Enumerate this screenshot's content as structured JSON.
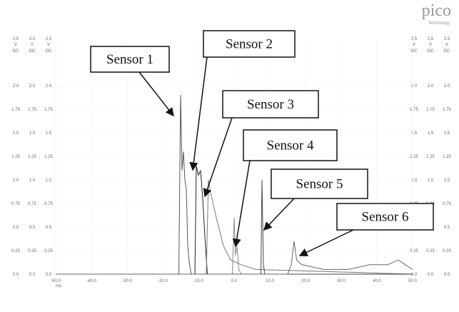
{
  "chart_data": {
    "type": "line",
    "brand": "pico",
    "brand_sub": "Technology",
    "yunit": [
      "V",
      "DC"
    ],
    "xunit": "ms",
    "xlim": [
      -50,
      50
    ],
    "ylim": [
      0,
      2.5
    ],
    "xticks": [
      {
        "value": -50,
        "label": "-50.0"
      },
      {
        "value": -40,
        "label": "-40.0"
      },
      {
        "value": -30,
        "label": "-30.0"
      },
      {
        "value": -20,
        "label": "-20.0"
      },
      {
        "value": -10,
        "label": "-10.0"
      },
      {
        "value": 0,
        "label": "0.0"
      },
      {
        "value": 10,
        "label": "10.0"
      },
      {
        "value": 20,
        "label": "20.0"
      },
      {
        "value": 30,
        "label": "30.0"
      },
      {
        "value": 40,
        "label": "40.0"
      },
      {
        "value": 50,
        "label": "50.0"
      }
    ],
    "yticks": [
      {
        "value": 0,
        "label": "0.0"
      },
      0.25,
      0.5,
      0.75,
      {
        "value": 1,
        "label": "1.0"
      },
      1.25,
      1.5,
      1.75,
      {
        "value": 2,
        "label": "2.0"
      },
      2.5
    ],
    "grid": true,
    "series": [
      {
        "name": "Sensor 1",
        "color": "#555555",
        "x": [
          -50,
          -15.5,
          -15,
          -14.6,
          -14.2,
          -13.8,
          -13.4,
          -13,
          -12.5,
          -12,
          50
        ],
        "values": [
          0,
          0,
          1.9,
          1.1,
          1.3,
          1.0,
          0.9,
          0.3,
          0.1,
          0,
          0
        ]
      },
      {
        "name": "Sensor 2",
        "color": "#222222",
        "x": [
          -50,
          -11,
          -10.6,
          -10,
          -9.4,
          -8.8,
          -8.2,
          -7.5,
          50
        ],
        "values": [
          0,
          0,
          1.15,
          1.05,
          1.1,
          0.8,
          0.4,
          0,
          0
        ]
      },
      {
        "name": "Sensor 3",
        "color": "#777777",
        "x": [
          -50,
          -7.8,
          -7.2,
          -6.5,
          -5,
          -3,
          -1,
          2,
          6,
          50
        ],
        "values": [
          0,
          0,
          1.0,
          0.85,
          0.6,
          0.3,
          0.15,
          0.1,
          0.05,
          0
        ]
      },
      {
        "name": "Sensor 4",
        "color": "#888888",
        "x": [
          -50,
          -0.5,
          0,
          0.4,
          0.8,
          1.3,
          2,
          50
        ],
        "values": [
          0,
          0,
          0.6,
          0.2,
          0.3,
          0.05,
          0,
          0
        ]
      },
      {
        "name": "Sensor 5",
        "color": "#444444",
        "x": [
          -50,
          7.5,
          7.8,
          8.2,
          8.6,
          50
        ],
        "values": [
          0,
          0,
          1.0,
          0.1,
          0,
          0
        ]
      },
      {
        "name": "Sensor 6",
        "color": "#666666",
        "x": [
          -50,
          15,
          16,
          16.8,
          17.5,
          19,
          25,
          32,
          38,
          43,
          46,
          50
        ],
        "values": [
          0,
          0,
          0.1,
          0.35,
          0.15,
          0.1,
          0.05,
          0.05,
          0.1,
          0.1,
          0.15,
          0.05
        ]
      }
    ]
  }
}
